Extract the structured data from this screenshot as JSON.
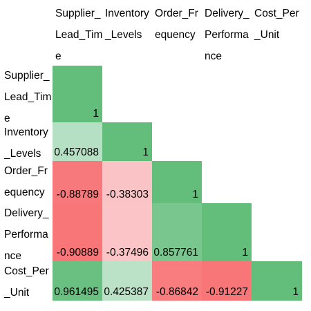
{
  "chart_data": {
    "type": "heatmap",
    "variables": [
      "Supplier_Lead_Time",
      "Inventory_Levels",
      "Order_Frequency",
      "Delivery_Performance",
      "Cost_Per_Unit"
    ],
    "label_lines": [
      [
        "Supplier_",
        "Lead_Tim",
        "e"
      ],
      [
        "Inventory",
        "_Levels"
      ],
      [
        "Order_Fr",
        "equency"
      ],
      [
        "Delivery_",
        "Performa",
        "nce"
      ],
      [
        "Cost_Per",
        "_Unit"
      ]
    ],
    "matrix_lower": [
      [
        1
      ],
      [
        0.457088,
        1
      ],
      [
        -0.88789,
        -0.38303,
        1
      ],
      [
        -0.90889,
        -0.37496,
        0.857761,
        1
      ],
      [
        0.961495,
        0.425387,
        -0.86842,
        -0.91227,
        1
      ]
    ],
    "value_labels": [
      [
        "1"
      ],
      [
        "0.457088",
        "1"
      ],
      [
        "-0.88789",
        "-0.38303",
        "1"
      ],
      [
        "-0.90889",
        "-0.37496",
        "0.857761",
        "1"
      ],
      [
        "0.961495",
        "0.425387",
        "-0.86842",
        "-0.91227",
        "1"
      ]
    ],
    "shape": "lower-triangle",
    "color_scale": {
      "min": -1,
      "mid": 0,
      "max": 1,
      "min_color": "#f8696b",
      "mid_color": "#fcfcff",
      "max_color": "#63be7b"
    }
  }
}
